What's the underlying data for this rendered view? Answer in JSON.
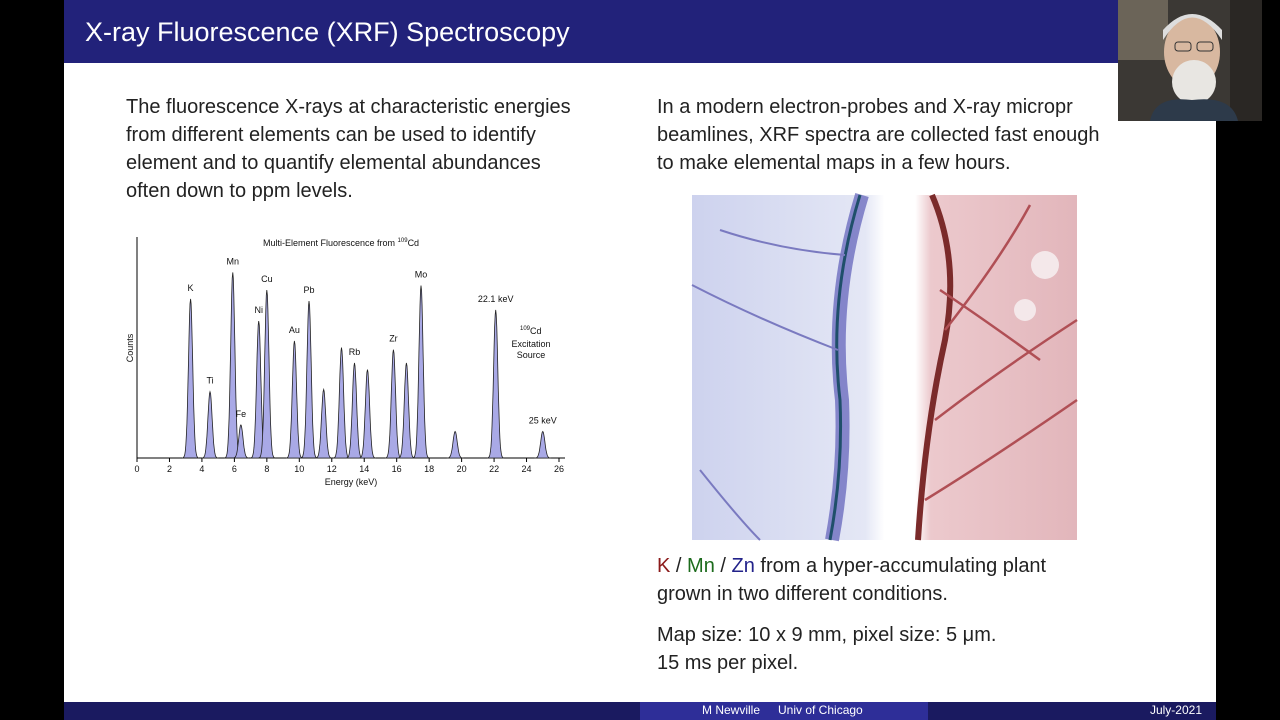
{
  "header": {
    "title": "X-ray Fluorescence (XRF) Spectroscopy"
  },
  "left": {
    "lines": [
      "The fluorescence X-rays at characteristic energies",
      "from different elements can be used to identify",
      "element and to quantify elemental abundances",
      "often down to ppm levels."
    ]
  },
  "spectrum": {
    "type": "peaks",
    "title": [
      "Multi-Element Fluorescence from ",
      "109",
      "Cd"
    ],
    "xlabel": "Energy (keV)",
    "ylabel": "Counts",
    "xlim": [
      0,
      26
    ],
    "xticks": [
      0,
      2,
      4,
      6,
      8,
      10,
      12,
      14,
      16,
      18,
      20,
      22,
      24,
      26
    ],
    "ylim": [
      0,
      100
    ],
    "peaks": [
      {
        "label": "K",
        "x": 3.3,
        "height": 72
      },
      {
        "label": "Ti",
        "x": 4.5,
        "height": 30
      },
      {
        "label": "Mn",
        "x": 5.9,
        "height": 84
      },
      {
        "label": "Fe",
        "x": 6.4,
        "height": 15
      },
      {
        "label": "Ni",
        "x": 7.5,
        "height": 62
      },
      {
        "label": "Cu",
        "x": 8.0,
        "height": 76
      },
      {
        "label": "Au",
        "x": 9.7,
        "height": 53
      },
      {
        "label": "Pb",
        "x": 10.6,
        "height": 71
      },
      {
        "label": null,
        "x": 11.5,
        "height": 31
      },
      {
        "label": null,
        "x": 12.6,
        "height": 50
      },
      {
        "label": "Rb",
        "x": 13.4,
        "height": 43
      },
      {
        "label": null,
        "x": 14.2,
        "height": 40
      },
      {
        "label": "Zr",
        "x": 15.8,
        "height": 49
      },
      {
        "label": null,
        "x": 16.6,
        "height": 43
      },
      {
        "label": "Mo",
        "x": 17.5,
        "height": 78
      },
      {
        "label": null,
        "x": 19.6,
        "height": 12
      },
      {
        "label": "22.1 keV",
        "x": 22.1,
        "height": 67
      },
      {
        "label": "25 keV",
        "x": 25.0,
        "height": 12
      }
    ],
    "annotation": {
      "isotope": "109",
      "element": "Cd",
      "lines": [
        "Excitation",
        "Source"
      ]
    }
  },
  "right": {
    "lines": [
      "In a modern electron-probes and X-ray micropr",
      "beamlines, XRF spectra are collected fast enough",
      "to make elemental maps in a few hours."
    ],
    "caption": {
      "k": "K",
      "sep1": "/",
      "mn": "Mn",
      "sep2": "/",
      "zn": "Zn",
      "rest": "from a hyper-accumulating plant",
      "line2": "grown in two different conditions."
    },
    "map_lines": [
      "Map size: 10 x 9 mm, pixel size: 5 μm.",
      "15 ms per pixel."
    ]
  },
  "footer": {
    "author": "M Newville",
    "institution": "Univ of Chicago",
    "date": "July-2021"
  }
}
